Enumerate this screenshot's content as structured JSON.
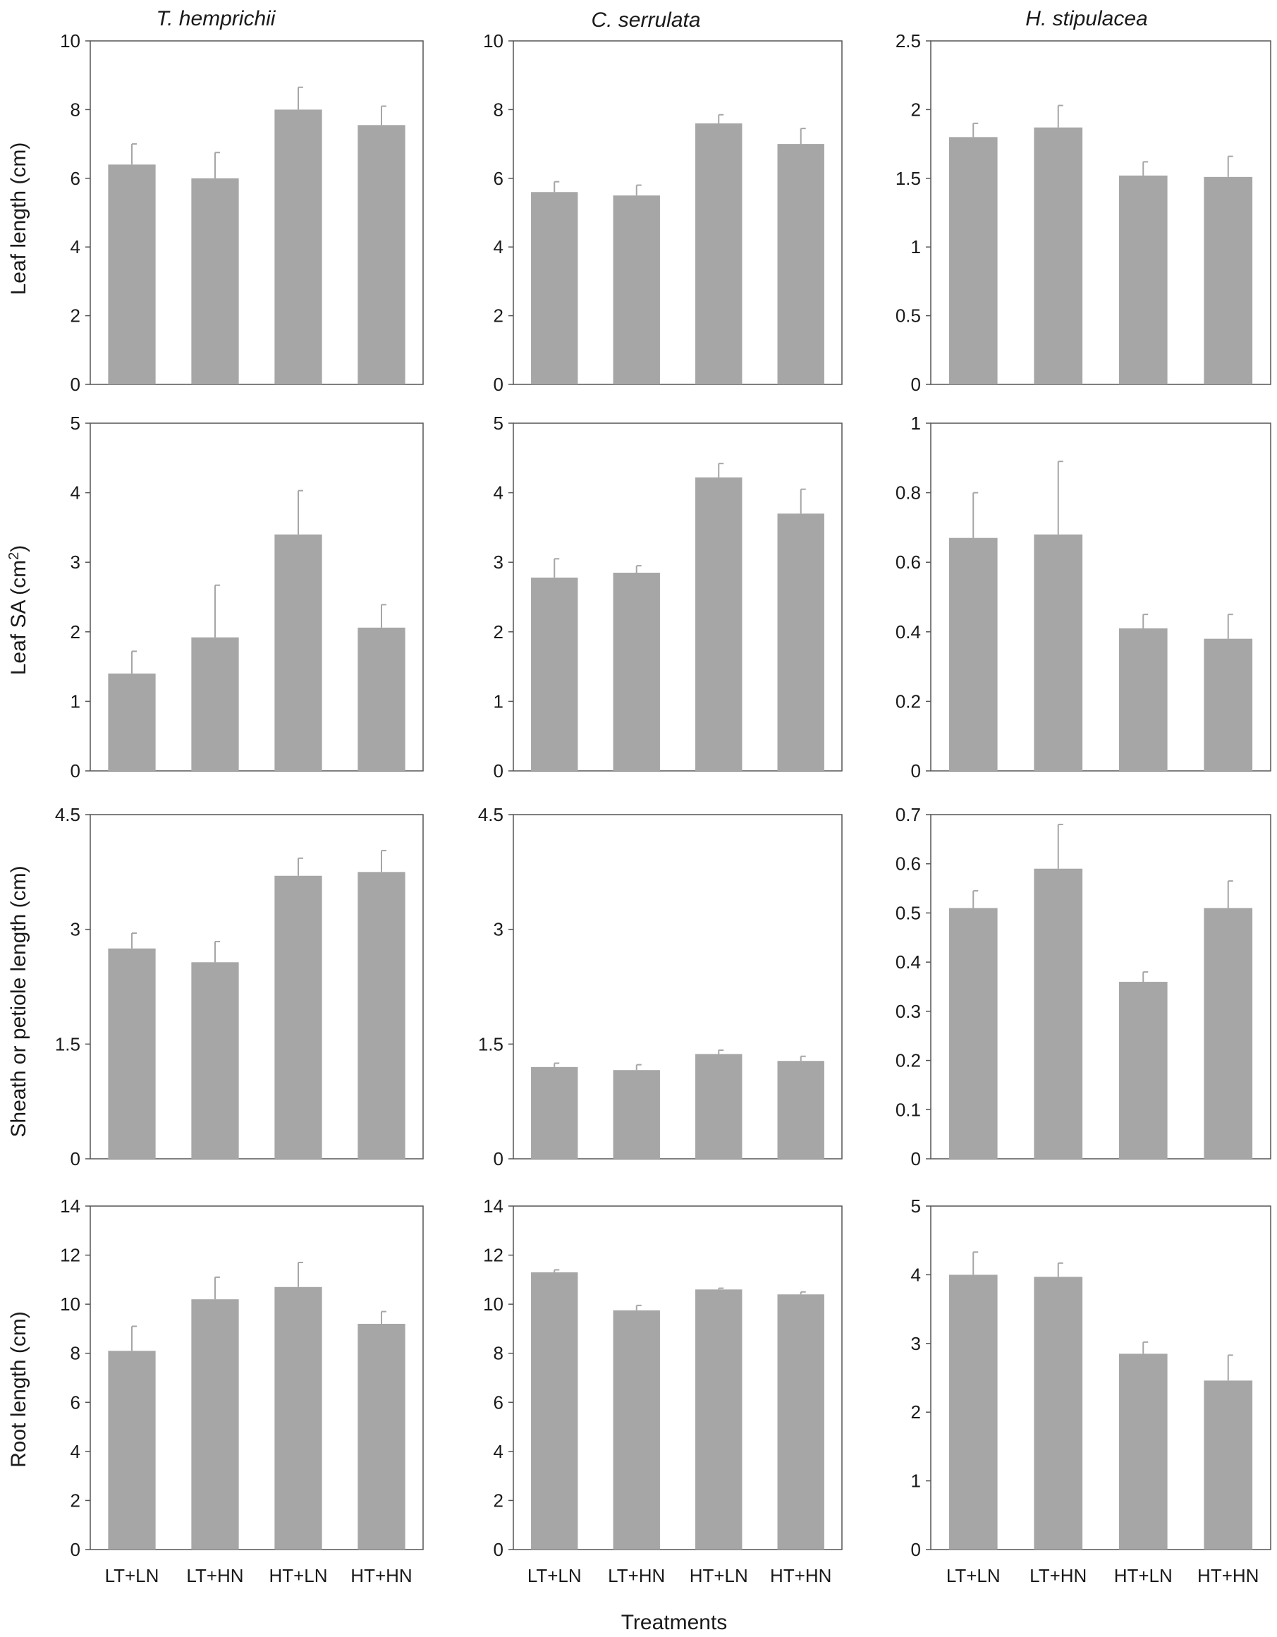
{
  "figure": {
    "column_titles": [
      "T. hemprichii",
      "C. serrulata",
      "H. stipulacea"
    ],
    "row_ylabels": [
      "Leaf length (cm)",
      "Leaf SA (cm²)",
      "Sheath or petiole length (cm)",
      "Root length (cm)"
    ],
    "xlabel": "Treatments",
    "categories": [
      "LT+LN",
      "LT+HN",
      "HT+LN",
      "HT+HN"
    ],
    "colors": {
      "bar": "#a6a6a6",
      "error": "#a6a6a6",
      "frame": "#555555"
    }
  },
  "chart_data": [
    {
      "type": "bar",
      "row": 0,
      "col": 0,
      "species": "T. hemprichii",
      "ylabel": "Leaf length (cm)",
      "ylim": [
        0,
        10
      ],
      "yticks": [
        "0",
        "2",
        "4",
        "6",
        "8",
        "10"
      ],
      "tickvals": [
        0,
        2,
        4,
        6,
        8,
        10
      ],
      "categories": [
        "LT+LN",
        "LT+HN",
        "HT+LN",
        "HT+HN"
      ],
      "values": [
        6.4,
        6.0,
        8.0,
        7.55
      ],
      "errors": [
        0.6,
        0.75,
        0.65,
        0.55
      ]
    },
    {
      "type": "bar",
      "row": 0,
      "col": 1,
      "species": "C. serrulata",
      "ylabel": "Leaf length (cm)",
      "ylim": [
        0,
        10
      ],
      "yticks": [
        "0",
        "2",
        "4",
        "6",
        "8",
        "10"
      ],
      "tickvals": [
        0,
        2,
        4,
        6,
        8,
        10
      ],
      "categories": [
        "LT+LN",
        "LT+HN",
        "HT+LN",
        "HT+HN"
      ],
      "values": [
        5.6,
        5.5,
        7.6,
        7.0
      ],
      "errors": [
        0.3,
        0.3,
        0.25,
        0.45
      ]
    },
    {
      "type": "bar",
      "row": 0,
      "col": 2,
      "species": "H. stipulacea",
      "ylabel": "Leaf length (cm)",
      "ylim": [
        0,
        2.5
      ],
      "yticks": [
        "0",
        "0.5",
        "1",
        "1.5",
        "2",
        "2.5"
      ],
      "tickvals": [
        0,
        0.5,
        1,
        1.5,
        2,
        2.5
      ],
      "categories": [
        "LT+LN",
        "LT+HN",
        "HT+LN",
        "HT+HN"
      ],
      "values": [
        1.8,
        1.87,
        1.52,
        1.51
      ],
      "errors": [
        0.1,
        0.16,
        0.1,
        0.15
      ]
    },
    {
      "type": "bar",
      "row": 1,
      "col": 0,
      "species": "T. hemprichii",
      "ylabel": "Leaf SA (cm²)",
      "ylim": [
        0,
        5
      ],
      "yticks": [
        "0",
        "1",
        "2",
        "3",
        "4",
        "5"
      ],
      "tickvals": [
        0,
        1,
        2,
        3,
        4,
        5
      ],
      "categories": [
        "LT+LN",
        "LT+HN",
        "HT+LN",
        "HT+HN"
      ],
      "values": [
        1.4,
        1.92,
        3.4,
        2.06
      ],
      "errors": [
        0.32,
        0.75,
        0.63,
        0.33
      ]
    },
    {
      "type": "bar",
      "row": 1,
      "col": 1,
      "species": "C. serrulata",
      "ylabel": "Leaf SA (cm²)",
      "ylim": [
        0,
        5
      ],
      "yticks": [
        "0",
        "1",
        "2",
        "3",
        "4",
        "5"
      ],
      "tickvals": [
        0,
        1,
        2,
        3,
        4,
        5
      ],
      "categories": [
        "LT+LN",
        "LT+HN",
        "HT+LN",
        "HT+HN"
      ],
      "values": [
        2.78,
        2.85,
        4.22,
        3.7
      ],
      "errors": [
        0.27,
        0.1,
        0.2,
        0.35
      ]
    },
    {
      "type": "bar",
      "row": 1,
      "col": 2,
      "species": "H. stipulacea",
      "ylabel": "Leaf SA (cm²)",
      "ylim": [
        0,
        1
      ],
      "yticks": [
        "0",
        "0.2",
        "0.4",
        "0.6",
        "0.8",
        "1"
      ],
      "tickvals": [
        0,
        0.2,
        0.4,
        0.6,
        0.8,
        1
      ],
      "categories": [
        "LT+LN",
        "LT+HN",
        "HT+LN",
        "HT+HN"
      ],
      "values": [
        0.67,
        0.68,
        0.41,
        0.38
      ],
      "errors": [
        0.13,
        0.21,
        0.04,
        0.07
      ]
    },
    {
      "type": "bar",
      "row": 2,
      "col": 0,
      "species": "T. hemprichii",
      "ylabel": "Sheath or petiole length (cm)",
      "ylim": [
        0,
        4.5
      ],
      "yticks": [
        "0",
        "1.5",
        "3",
        "4.5"
      ],
      "tickvals": [
        0,
        1.5,
        3,
        4.5
      ],
      "categories": [
        "LT+LN",
        "LT+HN",
        "HT+LN",
        "HT+HN"
      ],
      "values": [
        2.75,
        2.57,
        3.7,
        3.75
      ],
      "errors": [
        0.2,
        0.27,
        0.23,
        0.28
      ]
    },
    {
      "type": "bar",
      "row": 2,
      "col": 1,
      "species": "C. serrulata",
      "ylabel": "Sheath or petiole length (cm)",
      "ylim": [
        0,
        4.5
      ],
      "yticks": [
        "0",
        "1.5",
        "3",
        "4.5"
      ],
      "tickvals": [
        0,
        1.5,
        3,
        4.5
      ],
      "categories": [
        "LT+LN",
        "LT+HN",
        "HT+LN",
        "HT+HN"
      ],
      "values": [
        1.2,
        1.16,
        1.37,
        1.28
      ],
      "errors": [
        0.05,
        0.07,
        0.05,
        0.06
      ]
    },
    {
      "type": "bar",
      "row": 2,
      "col": 2,
      "species": "H. stipulacea",
      "ylabel": "Sheath or petiole length (cm)",
      "ylim": [
        0,
        0.7
      ],
      "yticks": [
        "0",
        "0.1",
        "0.2",
        "0.3",
        "0.4",
        "0.5",
        "0.6",
        "0.7"
      ],
      "tickvals": [
        0,
        0.1,
        0.2,
        0.3,
        0.4,
        0.5,
        0.6,
        0.7
      ],
      "categories": [
        "LT+LN",
        "LT+HN",
        "HT+LN",
        "HT+HN"
      ],
      "values": [
        0.51,
        0.59,
        0.36,
        0.51
      ],
      "errors": [
        0.035,
        0.09,
        0.02,
        0.055
      ]
    },
    {
      "type": "bar",
      "row": 3,
      "col": 0,
      "species": "T. hemprichii",
      "ylabel": "Root length (cm)",
      "ylim": [
        0,
        14
      ],
      "yticks": [
        "0",
        "2",
        "4",
        "6",
        "8",
        "10",
        "12",
        "14"
      ],
      "tickvals": [
        0,
        2,
        4,
        6,
        8,
        10,
        12,
        14
      ],
      "categories": [
        "LT+LN",
        "LT+HN",
        "HT+LN",
        "HT+HN"
      ],
      "values": [
        8.1,
        10.2,
        10.7,
        9.2
      ],
      "errors": [
        1.0,
        0.9,
        1.0,
        0.5
      ]
    },
    {
      "type": "bar",
      "row": 3,
      "col": 1,
      "species": "C. serrulata",
      "ylabel": "Root length (cm)",
      "ylim": [
        0,
        14
      ],
      "yticks": [
        "0",
        "2",
        "4",
        "6",
        "8",
        "10",
        "12",
        "14"
      ],
      "tickvals": [
        0,
        2,
        4,
        6,
        8,
        10,
        12,
        14
      ],
      "categories": [
        "LT+LN",
        "LT+HN",
        "HT+LN",
        "HT+HN"
      ],
      "values": [
        11.3,
        9.75,
        10.6,
        10.4
      ],
      "errors": [
        0.1,
        0.2,
        0.05,
        0.1
      ]
    },
    {
      "type": "bar",
      "row": 3,
      "col": 2,
      "species": "H. stipulacea",
      "ylabel": "Root length (cm)",
      "ylim": [
        0,
        5
      ],
      "yticks": [
        "0",
        "1",
        "2",
        "3",
        "4",
        "5"
      ],
      "tickvals": [
        0,
        1,
        2,
        3,
        4,
        5
      ],
      "categories": [
        "LT+LN",
        "LT+HN",
        "HT+LN",
        "HT+HN"
      ],
      "values": [
        4.0,
        3.97,
        2.85,
        2.46
      ],
      "errors": [
        0.33,
        0.2,
        0.17,
        0.37
      ]
    }
  ]
}
